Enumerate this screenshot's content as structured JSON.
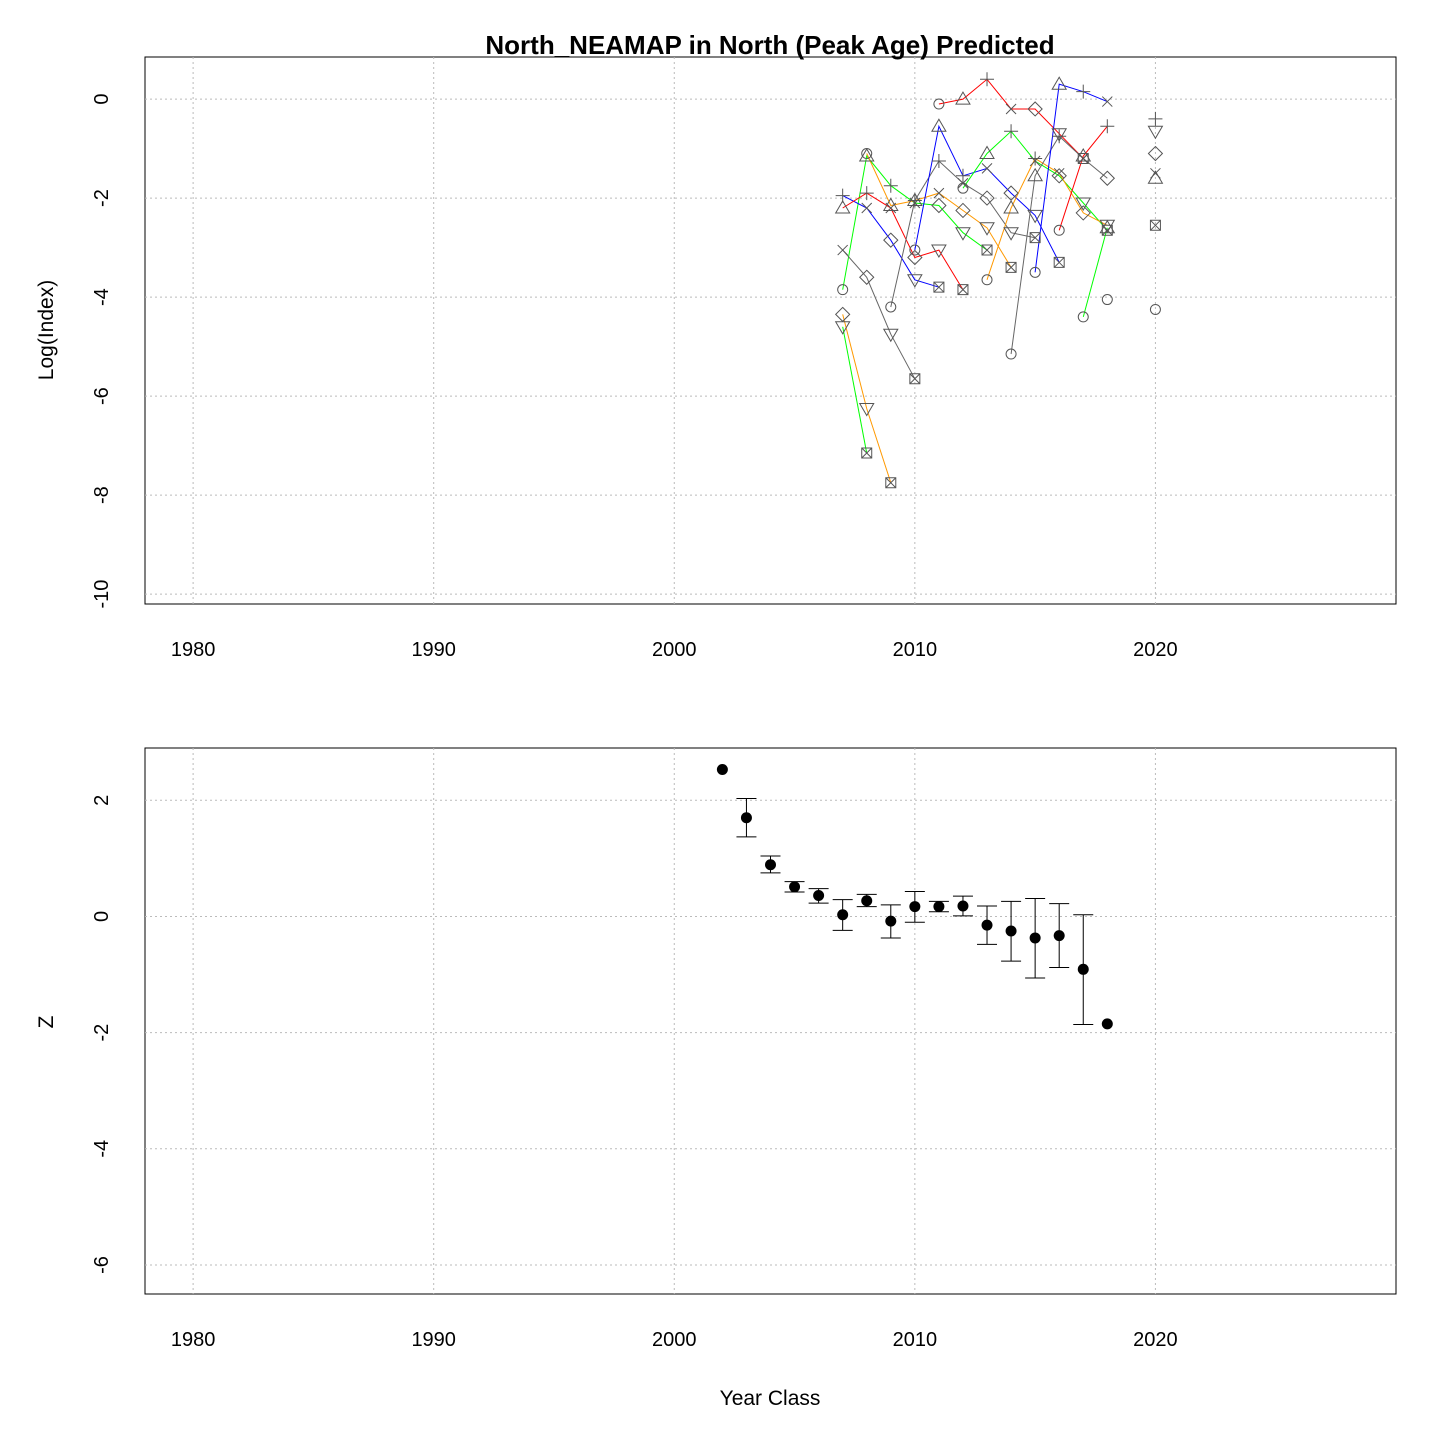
{
  "chart_data": [
    {
      "type": "line",
      "title": "North_NEAMAP in North (Peak Age) Predicted",
      "xlabel": "",
      "ylabel": "Log(Index)",
      "xlim": [
        1978,
        2030
      ],
      "ylim": [
        -10.2,
        0.85
      ],
      "xticks": [
        1980,
        1990,
        2000,
        2010,
        2020
      ],
      "yticks": [
        -10,
        -8,
        -6,
        -4,
        -2,
        0
      ],
      "grid": true,
      "colors": {
        "cohort": [
          "#00ff00",
          "#ff9900",
          "#666666",
          "#0000ff",
          "#ff0000"
        ],
        "orphan": "#666666"
      },
      "symbols_by_age": [
        "circle",
        "triangle-up",
        "plus",
        "cross",
        "diamond",
        "triangle-down",
        "square-x"
      ],
      "series": [
        {
          "color": "#00ff00",
          "points": [
            [
              2007,
              -3.85,
              "circle"
            ],
            [
              2008,
              -1.15,
              "triangle-up"
            ],
            [
              2009,
              -1.75,
              "plus"
            ],
            [
              2010,
              -2.1,
              "cross"
            ],
            [
              2011,
              -2.15,
              "diamond"
            ],
            [
              2012,
              -2.7,
              "triangle-down"
            ],
            [
              2013,
              -3.05,
              "square-x"
            ]
          ]
        },
        {
          "color": "#ff9900",
          "points": [
            [
              2007,
              -4.35,
              "diamond"
            ],
            [
              2008,
              -6.25,
              "triangle-down"
            ],
            [
              2009,
              -7.75,
              "square-x"
            ]
          ]
        },
        {
          "color": "#00ff00",
          "points": [
            [
              2007,
              -4.6,
              "triangle-down"
            ],
            [
              2008,
              -7.15,
              "square-x"
            ]
          ]
        },
        {
          "color": "#666666",
          "points": [
            [
              2007,
              -3.05,
              "cross"
            ],
            [
              2008,
              -3.6,
              "diamond"
            ],
            [
              2009,
              -4.75,
              "triangle-down"
            ],
            [
              2010,
              -5.65,
              "square-x"
            ]
          ]
        },
        {
          "color": "#0000ff",
          "points": [
            [
              2007,
              -1.95,
              "plus"
            ],
            [
              2008,
              -2.2,
              "cross"
            ],
            [
              2009,
              -2.85,
              "diamond"
            ],
            [
              2010,
              -3.65,
              "triangle-down"
            ],
            [
              2011,
              -3.8,
              "square-x"
            ]
          ]
        },
        {
          "color": "#ff0000",
          "points": [
            [
              2007,
              -2.2,
              "triangle-up"
            ],
            [
              2008,
              -1.9,
              "plus"
            ],
            [
              2009,
              -2.2,
              "cross"
            ],
            [
              2010,
              -3.2,
              "diamond"
            ],
            [
              2011,
              -3.05,
              "triangle-down"
            ],
            [
              2012,
              -3.85,
              "square-x"
            ]
          ]
        },
        {
          "color": "#ff9900",
          "points": [
            [
              2008,
              -1.1,
              "circle"
            ],
            [
              2009,
              -2.15,
              "triangle-up"
            ],
            [
              2010,
              -2.05,
              "plus"
            ],
            [
              2011,
              -1.9,
              "cross"
            ],
            [
              2012,
              -2.25,
              "diamond"
            ],
            [
              2013,
              -2.6,
              "triangle-down"
            ],
            [
              2014,
              -3.4,
              "square-x"
            ]
          ]
        },
        {
          "color": "#666666",
          "points": [
            [
              2009,
              -4.2,
              "circle"
            ],
            [
              2010,
              -2.05,
              "triangle-up"
            ],
            [
              2011,
              -1.25,
              "plus"
            ],
            [
              2012,
              -1.7,
              "cross"
            ],
            [
              2013,
              -2.0,
              "diamond"
            ],
            [
              2014,
              -2.7,
              "triangle-down"
            ],
            [
              2015,
              -2.8,
              "square-x"
            ]
          ]
        },
        {
          "color": "#0000ff",
          "points": [
            [
              2010,
              -3.05,
              "circle"
            ],
            [
              2011,
              -0.55,
              "triangle-up"
            ],
            [
              2012,
              -1.55,
              "plus"
            ],
            [
              2013,
              -1.4,
              "cross"
            ],
            [
              2014,
              -1.9,
              "diamond"
            ],
            [
              2015,
              -2.35,
              "triangle-down"
            ],
            [
              2016,
              -3.3,
              "square-x"
            ]
          ]
        },
        {
          "color": "#ff0000",
          "points": [
            [
              2011,
              -0.1,
              "circle"
            ],
            [
              2012,
              0.0,
              "triangle-up"
            ],
            [
              2013,
              0.4,
              "plus"
            ],
            [
              2014,
              -0.2,
              "cross"
            ],
            [
              2015,
              -0.2,
              "diamond"
            ],
            [
              2016,
              -0.7,
              "triangle-down"
            ],
            [
              2017,
              -1.2,
              "square-x"
            ]
          ]
        },
        {
          "color": "#00ff00",
          "points": [
            [
              2012,
              -1.8,
              "circle"
            ],
            [
              2013,
              -1.1,
              "triangle-up"
            ],
            [
              2014,
              -0.65,
              "plus"
            ],
            [
              2015,
              -1.25,
              "cross"
            ],
            [
              2016,
              -1.55,
              "diamond"
            ],
            [
              2017,
              -2.1,
              "triangle-down"
            ],
            [
              2018,
              -2.65,
              "square-x"
            ]
          ]
        },
        {
          "color": "#ff9900",
          "points": [
            [
              2013,
              -3.65,
              "circle"
            ],
            [
              2014,
              -2.2,
              "triangle-up"
            ],
            [
              2015,
              -1.2,
              "plus"
            ],
            [
              2016,
              -1.5,
              "cross"
            ],
            [
              2017,
              -2.3,
              "diamond"
            ],
            [
              2018,
              -2.55,
              "triangle-down"
            ]
          ]
        },
        {
          "color": "#666666",
          "points": [
            [
              2014,
              -5.15,
              "circle"
            ],
            [
              2015,
              -1.55,
              "triangle-up"
            ],
            [
              2016,
              -0.75,
              "plus"
            ],
            [
              2017,
              -1.2,
              "cross"
            ],
            [
              2018,
              -1.6,
              "diamond"
            ]
          ]
        },
        {
          "color": "#0000ff",
          "points": [
            [
              2015,
              -3.5,
              "circle"
            ],
            [
              2016,
              0.3,
              "triangle-up"
            ],
            [
              2017,
              0.15,
              "plus"
            ],
            [
              2018,
              -0.05,
              "cross"
            ]
          ]
        },
        {
          "color": "#ff0000",
          "points": [
            [
              2016,
              -2.65,
              "circle"
            ],
            [
              2017,
              -1.15,
              "triangle-up"
            ],
            [
              2018,
              -0.55,
              "plus"
            ]
          ]
        },
        {
          "color": "#00ff00",
          "points": [
            [
              2017,
              -4.4,
              "circle"
            ],
            [
              2018,
              -2.6,
              "triangle-up"
            ]
          ]
        }
      ],
      "orphans": [
        [
          2018,
          -4.05,
          "circle"
        ],
        [
          2020,
          -4.25,
          "circle"
        ],
        [
          2020,
          -1.6,
          "triangle-up"
        ],
        [
          2020,
          -0.4,
          "plus"
        ],
        [
          2020,
          -1.5,
          "cross"
        ],
        [
          2020,
          -1.1,
          "diamond"
        ],
        [
          2020,
          -0.65,
          "triangle-down"
        ],
        [
          2020,
          -2.55,
          "square-x"
        ]
      ]
    },
    {
      "type": "scatter",
      "title": "",
      "xlabel": "Year Class",
      "ylabel": "Z",
      "xlim": [
        1978,
        2030
      ],
      "ylim": [
        -6.5,
        2.9
      ],
      "xticks": [
        1980,
        1990,
        2000,
        2010,
        2020
      ],
      "yticks": [
        -6,
        -4,
        -2,
        0,
        2
      ],
      "grid": true,
      "error_bars": true,
      "points": [
        {
          "x": 2002,
          "y": 2.53
        },
        {
          "x": 2003,
          "y": 1.7,
          "lo": 1.37,
          "hi": 2.03
        },
        {
          "x": 2004,
          "y": 0.89,
          "lo": 0.75,
          "hi": 1.04
        },
        {
          "x": 2005,
          "y": 0.51,
          "lo": 0.42,
          "hi": 0.6
        },
        {
          "x": 2006,
          "y": 0.36,
          "lo": 0.23,
          "hi": 0.48
        },
        {
          "x": 2007,
          "y": 0.03,
          "lo": -0.24,
          "hi": 0.29
        },
        {
          "x": 2008,
          "y": 0.27,
          "lo": 0.17,
          "hi": 0.38
        },
        {
          "x": 2009,
          "y": -0.08,
          "lo": -0.37,
          "hi": 0.2
        },
        {
          "x": 2010,
          "y": 0.17,
          "lo": -0.1,
          "hi": 0.43
        },
        {
          "x": 2011,
          "y": 0.17,
          "lo": 0.08,
          "hi": 0.26
        },
        {
          "x": 2012,
          "y": 0.18,
          "lo": 0.01,
          "hi": 0.35
        },
        {
          "x": 2013,
          "y": -0.15,
          "lo": -0.48,
          "hi": 0.18
        },
        {
          "x": 2014,
          "y": -0.25,
          "lo": -0.77,
          "hi": 0.26
        },
        {
          "x": 2015,
          "y": -0.37,
          "lo": -1.06,
          "hi": 0.31
        },
        {
          "x": 2016,
          "y": -0.33,
          "lo": -0.88,
          "hi": 0.22
        },
        {
          "x": 2017,
          "y": -0.91,
          "lo": -1.86,
          "hi": 0.03
        },
        {
          "x": 2018,
          "y": -1.85
        }
      ]
    }
  ]
}
